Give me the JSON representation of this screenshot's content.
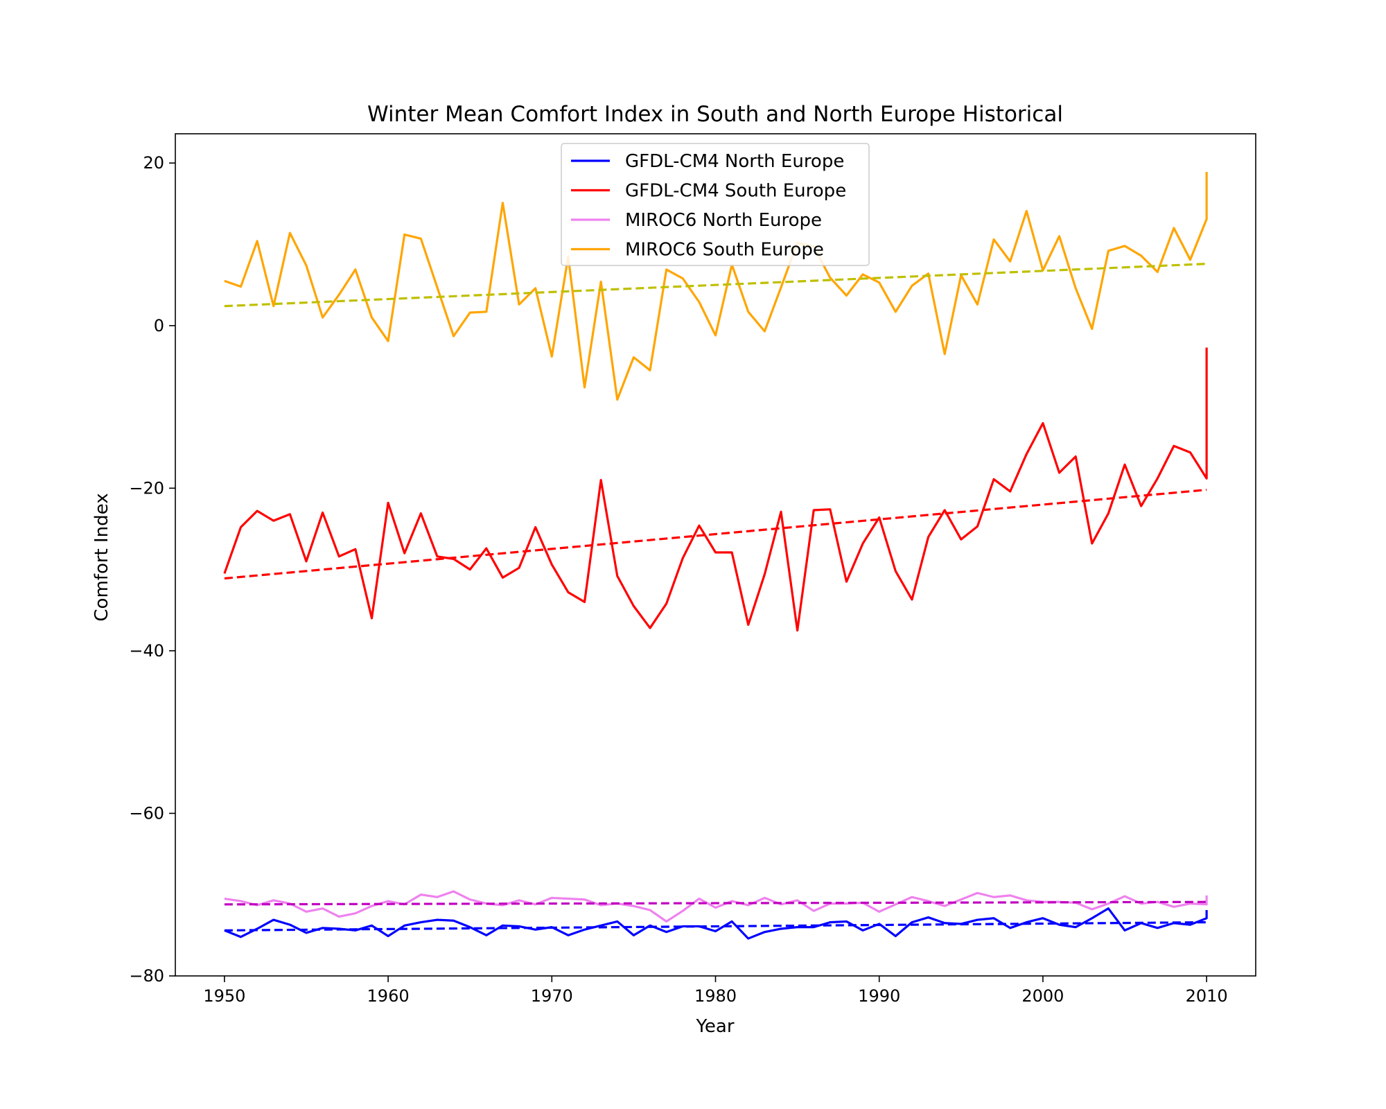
{
  "chart_data": {
    "type": "line",
    "title": "Winter Mean Comfort Index in South and North Europe Historical",
    "xlabel": "Year",
    "ylabel": "Comfort Index",
    "xlim": [
      1947,
      2013
    ],
    "ylim": [
      -80,
      23.6
    ],
    "xticks": [
      1950,
      1960,
      1970,
      1980,
      1990,
      2000,
      2010
    ],
    "yticks": [
      20,
      0,
      -20,
      -40,
      -60,
      -80
    ],
    "ytick_labels": [
      "20",
      "0",
      "−20",
      "−40",
      "−60",
      "−80"
    ],
    "grid": false,
    "legend_position": "upper center",
    "x": [
      1950,
      1951,
      1952,
      1953,
      1954,
      1955,
      1956,
      1957,
      1958,
      1959,
      1960,
      1961,
      1962,
      1963,
      1964,
      1965,
      1966,
      1967,
      1968,
      1969,
      1970,
      1971,
      1972,
      1973,
      1974,
      1975,
      1976,
      1977,
      1978,
      1979,
      1980,
      1981,
      1982,
      1983,
      1984,
      1985,
      1986,
      1987,
      1988,
      1989,
      1990,
      1991,
      1992,
      1993,
      1994,
      1995,
      1996,
      1997,
      1998,
      1999,
      2000,
      2001,
      2002,
      2003,
      2004,
      2005,
      2006,
      2007,
      2008,
      2009,
      2010
    ],
    "series": [
      {
        "name": "GFDL-CM4 North Europe",
        "color": "#0000ff",
        "values": [
          -74.4,
          -75.2,
          -74.2,
          -73.1,
          -73.7,
          -74.7,
          -74.1,
          -74.2,
          -74.4,
          -73.8,
          -75.1,
          -73.8,
          -73.4,
          -73.1,
          -73.2,
          -74,
          -75,
          -73.8,
          -73.9,
          -74.3,
          -74,
          -75,
          -74.3,
          -73.8,
          -73.3,
          -75,
          -73.8,
          -74.6,
          -73.9,
          -73.9,
          -74.5,
          -73.3,
          -75.4,
          -74.6,
          -74.2,
          -74,
          -74,
          -73.4,
          -73.3,
          -74.4,
          -73.6,
          -75.1,
          -73.4,
          -72.8,
          -73.5,
          -73.6,
          -73.1,
          -72.9,
          -74.1,
          -73.4,
          -72.9,
          -73.7,
          -74,
          -72.9,
          -71.7,
          -74.4,
          -73.5,
          -74.1,
          -73.5,
          -73.7,
          -72.9
        ],
        "end_segment": [
          -72.9,
          -71.9
        ]
      },
      {
        "name": "GFDL-CM4 South Europe",
        "color": "#ff0000",
        "values": [
          -30.5,
          -24.8,
          -22.8,
          -24,
          -23.2,
          -29,
          -23,
          -28.4,
          -27.5,
          -36,
          -21.8,
          -28,
          -23.1,
          -28.4,
          -28.7,
          -30,
          -27.4,
          -31,
          -29.8,
          -24.8,
          -29.4,
          -32.8,
          -34,
          -19,
          -30.8,
          -34.5,
          -37.2,
          -34.2,
          -28.6,
          -24.6,
          -27.9,
          -27.9,
          -36.8,
          -30.6,
          -22.9,
          -37.5,
          -22.7,
          -22.6,
          -31.5,
          -26.8,
          -23.6,
          -30.2,
          -33.7,
          -26,
          -22.7,
          -26.3,
          -24.7,
          -18.9,
          -20.4,
          -15.8,
          -12,
          -18.1,
          -16.1,
          -26.8,
          -23.1,
          -17.1,
          -22.2,
          -18.8,
          -14.8,
          -15.6,
          -18.8
        ],
        "end_segment": [
          -18.8,
          -2.7
        ]
      },
      {
        "name": "MIROC6 North Europe",
        "color": "#ee82ee",
        "values": [
          -70.5,
          -70.8,
          -71.3,
          -70.7,
          -71.1,
          -72.1,
          -71.7,
          -72.7,
          -72.3,
          -71.4,
          -70.8,
          -71.2,
          -70,
          -70.3,
          -69.6,
          -70.6,
          -71.1,
          -71.3,
          -70.7,
          -71.2,
          -70.4,
          -70.5,
          -70.6,
          -71.3,
          -71.1,
          -71.4,
          -71.9,
          -73.3,
          -72,
          -70.5,
          -71.6,
          -70.8,
          -71.3,
          -70.4,
          -71.2,
          -70.7,
          -72,
          -71.1,
          -71.1,
          -71,
          -72.1,
          -71.2,
          -70.3,
          -70.8,
          -71.4,
          -70.6,
          -69.8,
          -70.3,
          -70.1,
          -70.7,
          -70.9,
          -70.9,
          -71,
          -71.8,
          -71.1,
          -70.2,
          -71.1,
          -70.9,
          -71.5,
          -71.1,
          -71.2
        ],
        "end_segment": [
          -71.2,
          -70.1
        ]
      },
      {
        "name": "MIROC6 South Europe",
        "color": "#ffa500",
        "values": [
          5.5,
          4.8,
          10.4,
          2.4,
          11.4,
          7.4,
          1,
          3.8,
          6.9,
          1,
          -1.9,
          11.2,
          10.7,
          4.7,
          -1.3,
          1.6,
          1.7,
          15.1,
          2.6,
          4.6,
          -3.8,
          8.5,
          -7.6,
          5.4,
          -9.1,
          -3.9,
          -5.5,
          6.9,
          5.8,
          2.9,
          -1.2,
          7.5,
          1.7,
          -0.7,
          4.7,
          10.2,
          9.7,
          5.9,
          3.7,
          6.3,
          5.3,
          1.7,
          4.9,
          6.4,
          -3.5,
          6.2,
          2.6,
          10.6,
          7.9,
          14.1,
          6.8,
          11,
          4.6,
          -0.4,
          9.2,
          9.8,
          8.6,
          6.6,
          12,
          8.1,
          13.1
        ],
        "end_segment": [
          13.1,
          18.9
        ]
      }
    ],
    "trend_lines": [
      {
        "for_series": "GFDL-CM4 North Europe",
        "color": "#0000ff",
        "start": [
          1950,
          -74.4
        ],
        "end": [
          2010,
          -73.4
        ]
      },
      {
        "for_series": "GFDL-CM4 South Europe",
        "color": "#ff0000",
        "start": [
          1950,
          -31.1
        ],
        "end": [
          2010,
          -20.2
        ]
      },
      {
        "for_series": "MIROC6 North Europe",
        "color": "#c000c0",
        "start": [
          1950,
          -71.2
        ],
        "end": [
          2010,
          -70.9
        ]
      },
      {
        "for_series": "MIROC6 South Europe",
        "color": "#bfbf00",
        "start": [
          1950,
          2.4
        ],
        "end": [
          2010,
          7.6
        ]
      }
    ]
  }
}
